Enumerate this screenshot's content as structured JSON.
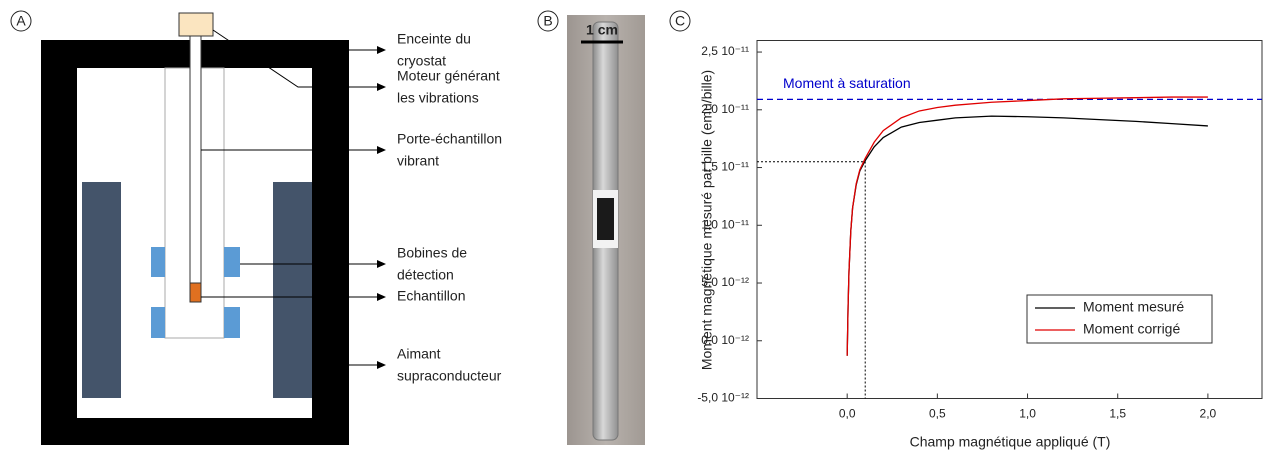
{
  "panels": {
    "a": {
      "letter": "A",
      "labels": [
        [
          "Enceinte du",
          "cryostat"
        ],
        [
          "Moteur générant",
          "les vibrations"
        ],
        [
          "Porte-échantillon",
          "vibrant"
        ],
        [
          "Bobines de",
          "détection"
        ],
        [
          "Echantillon"
        ],
        [
          "Aimant",
          "supraconducteur"
        ]
      ]
    },
    "b": {
      "letter": "B",
      "scale_label": "1 cm"
    },
    "c": {
      "letter": "C"
    }
  },
  "chart_data": {
    "type": "line",
    "x_label": "Champ magnétique appliqué (T)",
    "y_label": "Moment magnétique mesuré par bille (emu/bille)",
    "x": [
      0,
      0.005,
      0.01,
      0.02,
      0.03,
      0.05,
      0.07,
      0.1,
      0.15,
      0.2,
      0.3,
      0.4,
      0.5,
      0.6,
      0.8,
      1.0,
      1.2,
      1.4,
      1.6,
      1.8,
      2.0
    ],
    "series": [
      {
        "name": "Moment mesuré",
        "color": "#000000",
        "values": [
          -1.3e-12,
          3e-12,
          6e-12,
          9.5e-12,
          1.15e-11,
          1.35e-11,
          1.47e-11,
          1.56e-11,
          1.68e-11,
          1.76e-11,
          1.85e-11,
          1.89e-11,
          1.91e-11,
          1.93e-11,
          1.945e-11,
          1.94e-11,
          1.93e-11,
          1.915e-11,
          1.9e-11,
          1.88e-11,
          1.86e-11
        ]
      },
      {
        "name": "Moment corrigé",
        "color": "#e00000",
        "values": [
          -1.3e-12,
          3e-12,
          6e-12,
          9.5e-12,
          1.15e-11,
          1.36e-11,
          1.48e-11,
          1.58e-11,
          1.72e-11,
          1.82e-11,
          1.93e-11,
          1.99e-11,
          2.02e-11,
          2.04e-11,
          2.065e-11,
          2.08e-11,
          2.095e-11,
          2.1e-11,
          2.105e-11,
          2.11e-11,
          2.11e-11
        ]
      }
    ],
    "saturation": {
      "label": "Moment à saturation",
      "value": 2.09e-11,
      "color": "#0000cc"
    },
    "marker": {
      "x": 0.1,
      "y": 1.55e-11
    },
    "xlim": [
      -0.5,
      2.3
    ],
    "ylim": [
      -5e-12,
      2.6e-11
    ],
    "xticks": [
      {
        "value": 0,
        "label": "0,0"
      },
      {
        "value": 0.5,
        "label": "0,5"
      },
      {
        "value": 1,
        "label": "1,0"
      },
      {
        "value": 1.5,
        "label": "1,5"
      },
      {
        "value": 2,
        "label": "2,0"
      }
    ],
    "yticks": [
      {
        "value": -5e-12,
        "label": "-5,0 10⁻¹²"
      },
      {
        "value": 0,
        "label": "0,0 10⁻¹²"
      },
      {
        "value": 5e-12,
        "label": "5,0 10⁻¹²"
      },
      {
        "value": 1e-11,
        "label": "1,0 10⁻¹¹"
      },
      {
        "value": 1.5e-11,
        "label": "1,5 10⁻¹¹"
      },
      {
        "value": 2e-11,
        "label": "2,0 10⁻¹¹"
      },
      {
        "value": 2.5e-11,
        "label": "2,5 10⁻¹¹"
      }
    ],
    "legend": "lower right"
  }
}
